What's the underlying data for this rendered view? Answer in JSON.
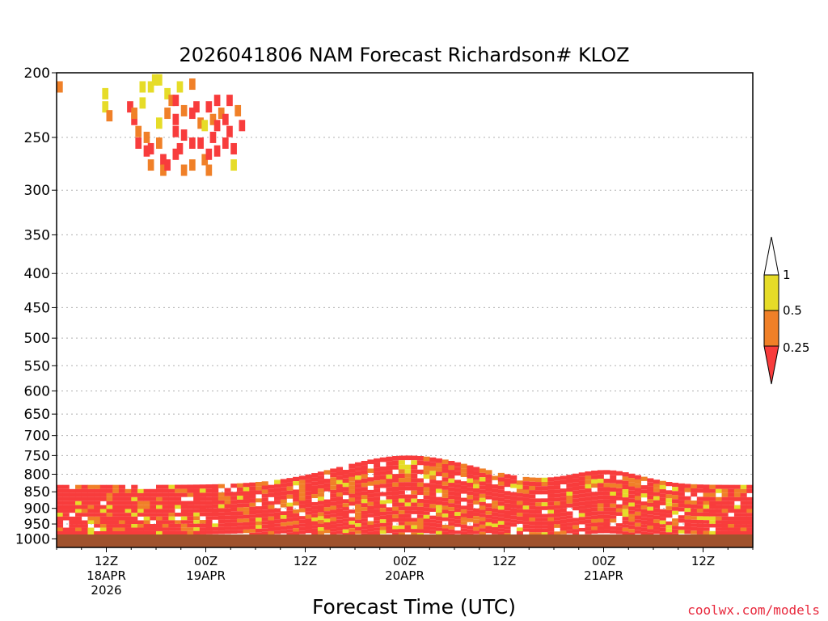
{
  "chart_data": {
    "type": "heatmap",
    "title": "2026041806 NAM Forecast Richardson# KLOZ",
    "xlabel": "Forecast Time (UTC)",
    "ylabel": "",
    "y_levels": [
      "200",
      "250",
      "300",
      "350",
      "400",
      "450",
      "500",
      "550",
      "600",
      "650",
      "700",
      "750",
      "800",
      "850",
      "900",
      "950",
      "1000"
    ],
    "x_ticks": [
      {
        "hour": 6,
        "lines": [
          "12Z",
          "18APR",
          "2026"
        ]
      },
      {
        "hour": 18,
        "lines": [
          "00Z",
          "19APR"
        ]
      },
      {
        "hour": 30,
        "lines": [
          "12Z"
        ]
      },
      {
        "hour": 42,
        "lines": [
          "00Z",
          "20APR"
        ]
      },
      {
        "hour": 54,
        "lines": [
          "12Z"
        ]
      },
      {
        "hour": 66,
        "lines": [
          "00Z",
          "21APR"
        ]
      },
      {
        "hour": 78,
        "lines": [
          "12Z"
        ]
      }
    ],
    "x_range_hours": [
      0,
      84
    ],
    "y_range_hpa": [
      200,
      1000
    ],
    "color_scale": {
      "thresholds": [
        "1",
        "0.5",
        "0.25"
      ],
      "colors": {
        "gt_1": "#ffffff",
        "0.5_to_1": "#e6dc28",
        "0.25_to_0.5": "#f08028",
        "lt_0.25": "#f83c3c",
        "below_ground": "#a0522d"
      }
    },
    "cells_note": "Each cell: [forecast_hour, pressure_hPa, category] where category 1 = 0.5-1, 2 = 0.25-0.5, 3 = <0.25",
    "cells": [
      [
        0,
        210,
        2
      ],
      [
        5.5,
        225,
        1
      ],
      [
        5.5,
        215,
        1
      ],
      [
        6,
        232,
        2
      ],
      [
        8.5,
        225,
        3
      ],
      [
        9,
        235,
        3
      ],
      [
        9,
        230,
        2
      ],
      [
        9.5,
        245,
        2
      ],
      [
        9.5,
        255,
        3
      ],
      [
        10,
        210,
        1
      ],
      [
        10,
        222,
        1
      ],
      [
        10.5,
        250,
        2
      ],
      [
        10.5,
        262,
        3
      ],
      [
        11,
        210,
        1
      ],
      [
        11,
        260,
        3
      ],
      [
        11,
        275,
        2
      ],
      [
        11.5,
        205,
        1
      ],
      [
        12,
        205,
        1
      ],
      [
        12,
        238,
        1
      ],
      [
        12,
        255,
        2
      ],
      [
        12.5,
        270,
        3
      ],
      [
        12.5,
        280,
        2
      ],
      [
        13,
        215,
        1
      ],
      [
        13,
        230,
        2
      ],
      [
        13,
        275,
        3
      ],
      [
        13.5,
        220,
        2
      ],
      [
        14,
        220,
        3
      ],
      [
        14,
        235,
        3
      ],
      [
        14,
        245,
        3
      ],
      [
        14,
        265,
        3
      ],
      [
        14.5,
        210,
        1
      ],
      [
        14.5,
        260,
        3
      ],
      [
        15,
        228,
        2
      ],
      [
        15,
        248,
        3
      ],
      [
        15,
        280,
        2
      ],
      [
        16,
        208,
        2
      ],
      [
        16,
        230,
        3
      ],
      [
        16,
        255,
        3
      ],
      [
        16,
        275,
        2
      ],
      [
        16.5,
        225,
        3
      ],
      [
        17,
        238,
        2
      ],
      [
        17,
        255,
        3
      ],
      [
        17.5,
        240,
        1
      ],
      [
        17.5,
        270,
        2
      ],
      [
        18,
        225,
        3
      ],
      [
        18,
        265,
        3
      ],
      [
        18,
        280,
        2
      ],
      [
        18.5,
        235,
        2
      ],
      [
        18.5,
        250,
        3
      ],
      [
        19,
        220,
        3
      ],
      [
        19,
        240,
        3
      ],
      [
        19,
        262,
        3
      ],
      [
        19.5,
        230,
        2
      ],
      [
        20,
        235,
        3
      ],
      [
        20,
        255,
        3
      ],
      [
        20.5,
        220,
        3
      ],
      [
        20.5,
        245,
        3
      ],
      [
        21,
        260,
        3
      ],
      [
        21,
        275,
        1
      ],
      [
        21.5,
        228,
        2
      ],
      [
        22,
        240,
        3
      ]
    ]
  },
  "legend": {
    "labels": [
      "1",
      "0.5",
      "0.25"
    ]
  },
  "credit": "coolwx.com/models"
}
